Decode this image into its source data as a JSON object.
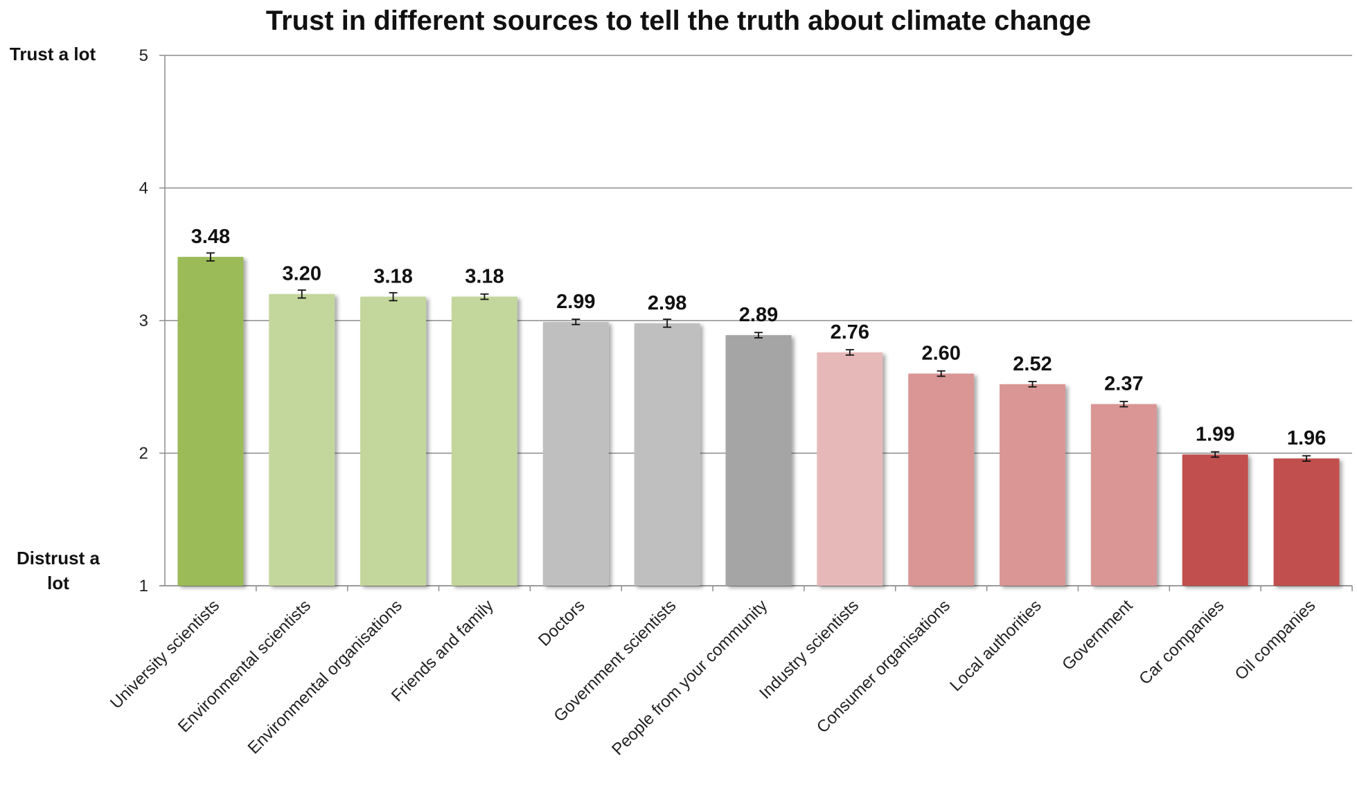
{
  "chart_data": {
    "type": "bar",
    "title": "Trust in different sources to tell the truth about climate change",
    "top_label": "Trust a lot",
    "bottom_label": "Distrust a lot",
    "ylim": [
      1,
      5
    ],
    "yticks": [
      1,
      2,
      3,
      4,
      5
    ],
    "grid": true,
    "legend": "none",
    "categories": [
      "University scientists",
      "Environmental scientists",
      "Environmental organisations",
      "Friends and family",
      "Doctors",
      "Government scientists",
      "People from your community",
      "Industry scientists",
      "Consumer organisations",
      "Local authorities",
      "Government",
      "Car companies",
      "Oil companies"
    ],
    "values": [
      3.48,
      3.2,
      3.18,
      3.18,
      2.99,
      2.98,
      2.89,
      2.76,
      2.6,
      2.52,
      2.37,
      1.99,
      1.96
    ],
    "value_labels": [
      "3.48",
      "3.20",
      "3.18",
      "3.18",
      "2.99",
      "2.98",
      "2.89",
      "2.76",
      "2.60",
      "2.52",
      "2.37",
      "1.99",
      "1.96"
    ],
    "error": [
      0.03,
      0.03,
      0.03,
      0.02,
      0.02,
      0.03,
      0.02,
      0.02,
      0.02,
      0.02,
      0.02,
      0.02,
      0.02
    ],
    "colors": [
      "#9bbb59",
      "#c3d69b",
      "#c3d69b",
      "#c3d69b",
      "#bfbfbf",
      "#bfbfbf",
      "#a5a5a5",
      "#e6b9b8",
      "#d99694",
      "#d99694",
      "#d99694",
      "#c0504d",
      "#c0504d"
    ]
  }
}
